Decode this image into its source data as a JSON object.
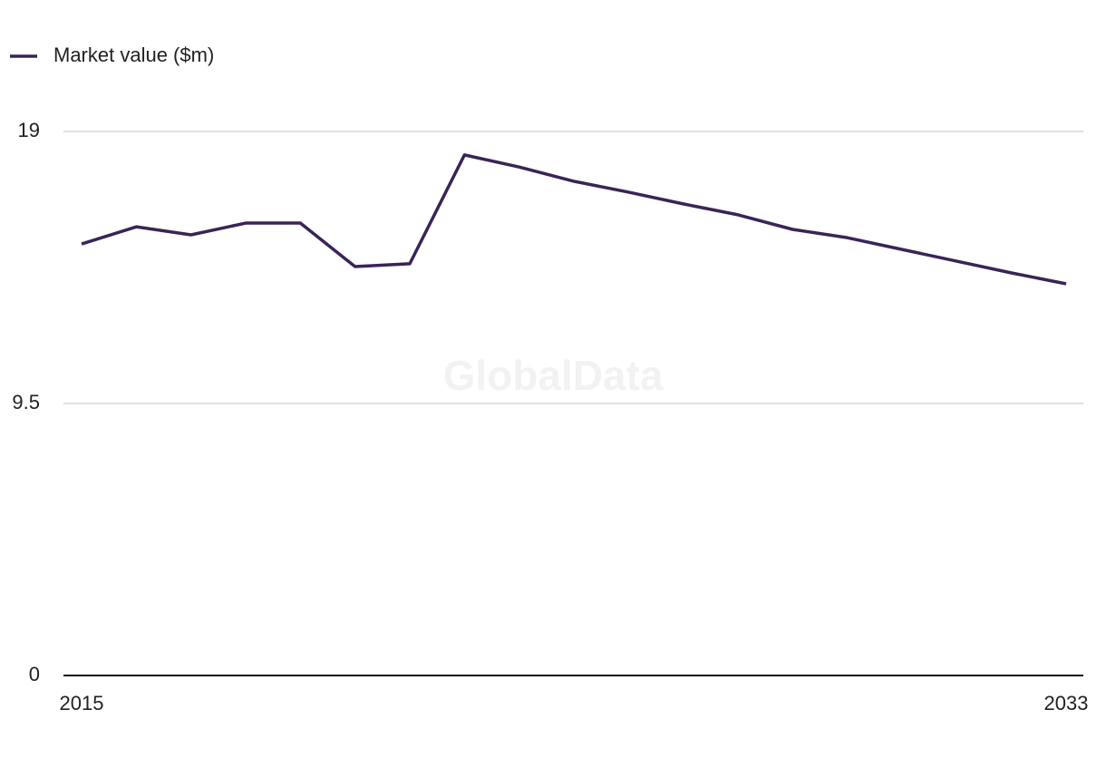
{
  "chart_data": {
    "type": "line",
    "watermark": "GlobalData",
    "x": [
      2015,
      2016,
      2017,
      2018,
      2019,
      2020,
      2021,
      2022,
      2023,
      2024,
      2025,
      2026,
      2027,
      2028,
      2029,
      2030,
      2031,
      2032,
      2033
    ],
    "series": [
      {
        "name": "Market value ($m)",
        "color": "#3a2456",
        "values": [
          15.07,
          15.67,
          15.39,
          15.8,
          15.8,
          14.28,
          14.38,
          18.18,
          17.76,
          17.26,
          16.88,
          16.47,
          16.09,
          15.58,
          15.29,
          14.88,
          14.47,
          14.06,
          13.68
        ]
      }
    ],
    "xlim": [
      2015,
      2033
    ],
    "xticks": [
      2015,
      2033
    ],
    "ylim": [
      0,
      19
    ],
    "yticks": [
      0,
      9.5,
      19
    ],
    "grid": true,
    "legend": "top-left"
  }
}
